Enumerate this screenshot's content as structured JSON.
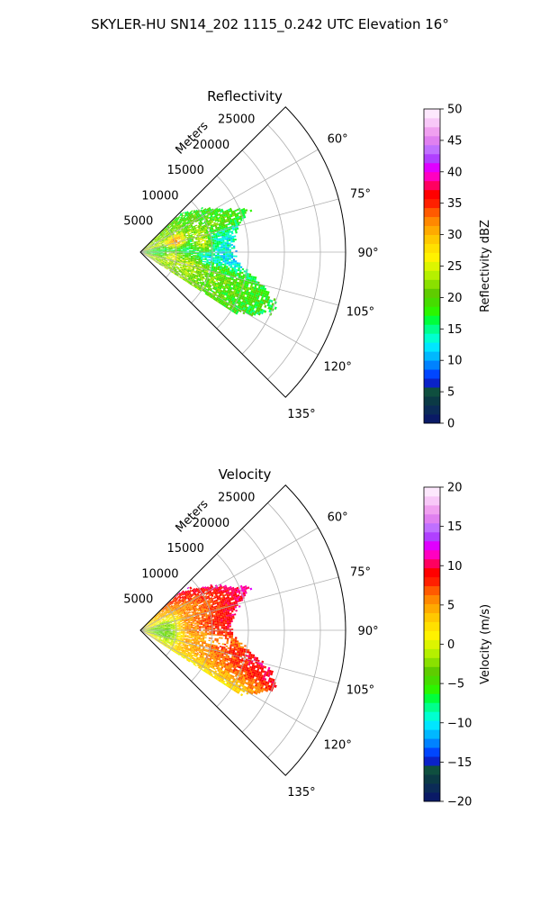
{
  "suptitle": "SKYLER-HU  SN14_202  1115_0.242 UTC Elevation 16°",
  "chart_data": [
    {
      "type": "polar-sector",
      "title": "Reflectivity",
      "range_label": "Meters",
      "radial_ticks": [
        "5000",
        "10000",
        "15000",
        "20000",
        "25000"
      ],
      "radial_values": [
        5000,
        10000,
        15000,
        20000,
        25000
      ],
      "rmax": 28500,
      "theta_range_deg": [
        45,
        135
      ],
      "angle_ticks": [
        "60°",
        "75°",
        "90°",
        "105°",
        "120°",
        "135°"
      ],
      "angle_values": [
        60,
        75,
        90,
        105,
        120,
        135
      ],
      "grid": true,
      "colorbar": {
        "label": "Reflectivity dBZ",
        "min": 0,
        "max": 50,
        "ticks": [
          "0",
          "5",
          "10",
          "15",
          "20",
          "25",
          "30",
          "35",
          "40",
          "45",
          "50"
        ],
        "tick_values": [
          0,
          5,
          10,
          15,
          20,
          25,
          30,
          35,
          40,
          45,
          50
        ],
        "colors": [
          "#0a1a66",
          "#0b2b57",
          "#0b3a45",
          "#0f4f3f",
          "#0a22c8",
          "#0046ff",
          "#0082ff",
          "#00b8ff",
          "#00e6ff",
          "#00ffd0",
          "#00ff8c",
          "#00ff3c",
          "#2cf500",
          "#46dc00",
          "#5fcc00",
          "#8ae000",
          "#b5f000",
          "#dcf500",
          "#fff200",
          "#ffe000",
          "#ffc800",
          "#ffaa00",
          "#ff8800",
          "#ff5a00",
          "#ff2000",
          "#ff0000",
          "#ff0060",
          "#ff00c0",
          "#e000ff",
          "#b040ff",
          "#c070ff",
          "#e080f0",
          "#f0a0f0",
          "#f8c8f8",
          "#fde8fd"
        ]
      },
      "field_range": [
        0,
        50
      ],
      "profile": [
        {
          "angle": 65,
          "range": 13800,
          "value": 18
        },
        {
          "angle": 67,
          "range": 15800,
          "value": 19
        },
        {
          "angle": 70,
          "range": 15500,
          "value": 18
        },
        {
          "angle": 73,
          "range": 14500,
          "value": 17
        },
        {
          "angle": 76,
          "range": 13500,
          "value": 14
        },
        {
          "angle": 79,
          "range": 13000,
          "value": 13
        },
        {
          "angle": 82,
          "range": 13000,
          "value": 14
        },
        {
          "angle": 86,
          "range": 12500,
          "value": 13
        },
        {
          "angle": 90,
          "range": 12500,
          "value": 13
        },
        {
          "angle": 94,
          "range": 13000,
          "value": 12
        },
        {
          "angle": 98,
          "range": 14000,
          "value": 13
        },
        {
          "angle": 101,
          "range": 15500,
          "value": 16
        },
        {
          "angle": 104,
          "range": 17000,
          "value": 17
        },
        {
          "angle": 107,
          "range": 18500,
          "value": 18
        },
        {
          "angle": 110,
          "range": 19500,
          "value": 18
        },
        {
          "angle": 113,
          "range": 20000,
          "value": 18
        },
        {
          "angle": 116,
          "range": 19000,
          "value": 17
        },
        {
          "angle": 119,
          "range": 17500,
          "value": 18
        },
        {
          "angle": 121,
          "range": 16000,
          "value": 18
        }
      ],
      "hotspots": [
        {
          "angle": 73,
          "range": 5000,
          "value": 34
        },
        {
          "angle": 80,
          "range": 8500,
          "value": 26
        },
        {
          "angle": 98,
          "range": 4500,
          "value": 27
        },
        {
          "angle": 103,
          "range": 7000,
          "value": 26
        },
        {
          "angle": 110,
          "range": 7500,
          "value": 22
        }
      ]
    },
    {
      "type": "polar-sector",
      "title": "Velocity",
      "range_label": "Meters",
      "radial_ticks": [
        "5000",
        "10000",
        "15000",
        "20000",
        "25000"
      ],
      "radial_values": [
        5000,
        10000,
        15000,
        20000,
        25000
      ],
      "rmax": 28500,
      "theta_range_deg": [
        45,
        135
      ],
      "angle_ticks": [
        "60°",
        "75°",
        "90°",
        "105°",
        "120°",
        "135°"
      ],
      "angle_values": [
        60,
        75,
        90,
        105,
        120,
        135
      ],
      "grid": true,
      "colorbar": {
        "label": "Velocity (m/s)",
        "min": -20,
        "max": 20,
        "ticks": [
          "−20",
          "−15",
          "−10",
          "−5",
          "0",
          "5",
          "10",
          "15",
          "20"
        ],
        "tick_values": [
          -20,
          -15,
          -10,
          -5,
          0,
          5,
          10,
          15,
          20
        ],
        "colors": [
          "#0a1a66",
          "#0b2b57",
          "#0b3a45",
          "#0f4f3f",
          "#0a22c8",
          "#0046ff",
          "#0082ff",
          "#00b8ff",
          "#00e6ff",
          "#00ffd0",
          "#00ff8c",
          "#00ff3c",
          "#2cf500",
          "#46dc00",
          "#5fcc00",
          "#8ae000",
          "#b5f000",
          "#dcf500",
          "#fff200",
          "#ffe000",
          "#ffc800",
          "#ffaa00",
          "#ff8800",
          "#ff5a00",
          "#ff2000",
          "#ff0000",
          "#ff0060",
          "#ff00c0",
          "#e000ff",
          "#b040ff",
          "#c070ff",
          "#e080f0",
          "#f0a0f0",
          "#f8c8f8",
          "#fde8fd"
        ]
      },
      "field_range": [
        -20,
        20
      ],
      "profile": [
        {
          "angle": 65,
          "range": 13800,
          "value": 9
        },
        {
          "angle": 67,
          "range": 15800,
          "value": 10
        },
        {
          "angle": 70,
          "range": 15500,
          "value": 10
        },
        {
          "angle": 73,
          "range": 14500,
          "value": 9
        },
        {
          "angle": 76,
          "range": 13500,
          "value": 9
        },
        {
          "angle": 79,
          "range": 13000,
          "value": 9
        },
        {
          "angle": 82,
          "range": 13000,
          "value": 9
        },
        {
          "angle": 86,
          "range": 12500,
          "value": 9
        },
        {
          "angle": 90,
          "range": 12500,
          "value": 8
        },
        {
          "angle": 94,
          "range": 13000,
          "value": 7
        },
        {
          "angle": 98,
          "range": 14000,
          "value": 6
        },
        {
          "angle": 101,
          "range": 15500,
          "value": 8
        },
        {
          "angle": 104,
          "range": 17000,
          "value": 9
        },
        {
          "angle": 107,
          "range": 18500,
          "value": 9
        },
        {
          "angle": 110,
          "range": 19500,
          "value": 9
        },
        {
          "angle": 113,
          "range": 20000,
          "value": 8
        },
        {
          "angle": 116,
          "range": 19000,
          "value": 6
        },
        {
          "angle": 119,
          "range": 17500,
          "value": 4
        },
        {
          "angle": 121,
          "range": 16000,
          "value": 2
        }
      ],
      "hotspots": [
        {
          "angle": 90,
          "range": 2500,
          "value": -6
        },
        {
          "angle": 100,
          "range": 3500,
          "value": -4
        },
        {
          "angle": 80,
          "range": 3500,
          "value": -3
        }
      ]
    }
  ]
}
